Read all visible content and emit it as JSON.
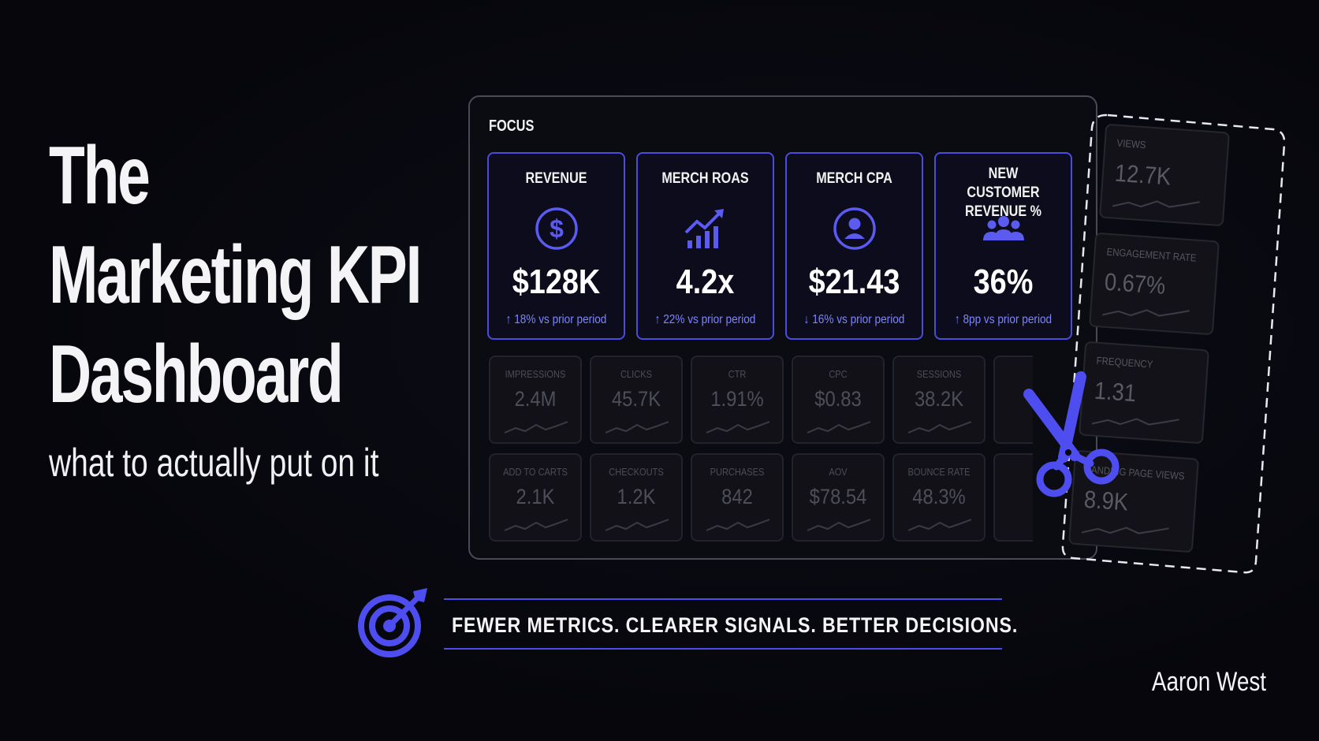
{
  "title": {
    "lines": [
      "The",
      "Marketing KPI",
      "Dashboard"
    ]
  },
  "subtitle": "what to actually put on it",
  "panel": {
    "label": "FOCUS",
    "kpis": [
      {
        "title": "REVENUE",
        "icon": "dollar-circle-icon",
        "value": "$128K",
        "change": "↑ 18% vs prior period"
      },
      {
        "title": "MERCH ROAS",
        "icon": "growth-chart-icon",
        "value": "4.2x",
        "change": "↑ 22% vs prior period"
      },
      {
        "title": "MERCH CPA",
        "icon": "user-circle-icon",
        "value": "$21.43",
        "change": "↓ 16% vs prior period"
      },
      {
        "title": "NEW CUSTOMER REVENUE %",
        "icon": "group-icon",
        "value": "36%",
        "change": "↑ 8pp vs prior period"
      }
    ],
    "row1": [
      {
        "label": "IMPRESSIONS",
        "value": "2.4M"
      },
      {
        "label": "CLICKS",
        "value": "45.7K"
      },
      {
        "label": "CTR",
        "value": "1.91%"
      },
      {
        "label": "CPC",
        "value": "$0.83"
      },
      {
        "label": "SESSIONS",
        "value": "38.2K"
      }
    ],
    "row2": [
      {
        "label": "ADD TO CARTS",
        "value": "2.1K"
      },
      {
        "label": "CHECKOUTS",
        "value": "1.2K"
      },
      {
        "label": "PURCHASES",
        "value": "842"
      },
      {
        "label": "AOV",
        "value": "$78.54"
      },
      {
        "label": "BOUNCE RATE",
        "value": "48.3%"
      }
    ]
  },
  "cut_strip": [
    {
      "label": "VIEWS",
      "value": "12.7K"
    },
    {
      "label": "ENGAGEMENT RATE",
      "value": "0.67%"
    },
    {
      "label": "FREQUENCY",
      "value": "1.31"
    },
    {
      "label": "LANDING PAGE VIEWS",
      "value": "8.9K"
    }
  ],
  "tagline": "FEWER METRICS. CLEARER SIGNALS. BETTER DECISIONS.",
  "author": "Aaron West",
  "colors": {
    "accent": "#4b4be0",
    "accent_text": "#7f84ff",
    "background": "#06060c"
  }
}
